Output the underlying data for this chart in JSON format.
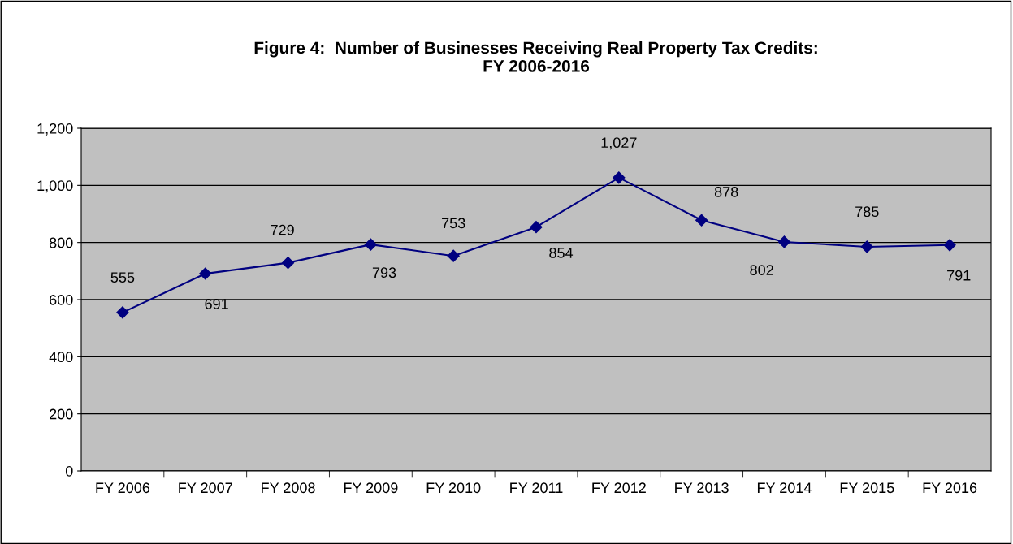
{
  "chart_data": {
    "type": "line",
    "title": "Figure 4:  Number of Businesses Receiving Real Property Tax Credits:\nFY 2006-2016",
    "categories": [
      "FY 2006",
      "FY 2007",
      "FY 2008",
      "FY 2009",
      "FY 2010",
      "FY 2011",
      "FY 2012",
      "FY 2013",
      "FY 2014",
      "FY 2015",
      "FY 2016"
    ],
    "series": [
      {
        "color": "#000080",
        "values": [
          555,
          691,
          729,
          793,
          753,
          854,
          1027,
          878,
          802,
          785,
          791
        ],
        "value_labels": [
          "555",
          "691",
          "729",
          "793",
          "753",
          "854",
          "1,027",
          "878",
          "802",
          "785",
          "791"
        ]
      }
    ],
    "ylim": [
      0,
      1200
    ],
    "yticks": [
      0,
      200,
      400,
      600,
      800,
      {
        "value": 1000,
        "label": "1,000"
      },
      {
        "value": 1200,
        "label": "1,200"
      }
    ],
    "grid": "y",
    "marker": "diamond",
    "line_style": "solid"
  }
}
